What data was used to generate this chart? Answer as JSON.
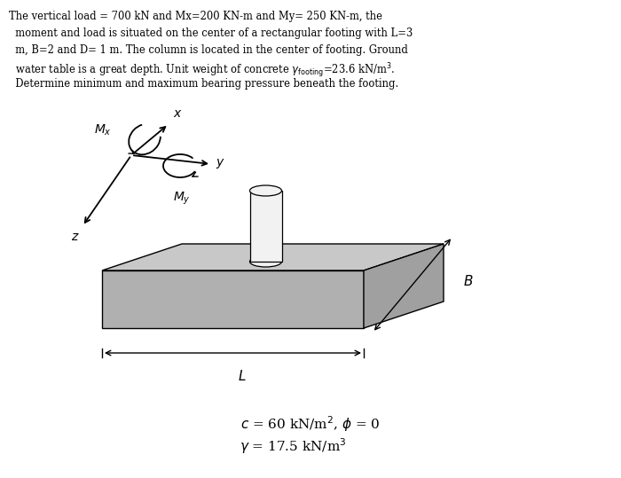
{
  "bg_color": "#ffffff",
  "text_color": "#000000",
  "footing_top_color": "#c8c8c8",
  "footing_front_color": "#b0b0b0",
  "footing_right_color": "#a0a0a0",
  "column_color": "#f2f2f2",
  "title_lines": [
    "The vertical load = 700 kN and Mx=200 KN-m and My= 250 KN-m, the",
    "  moment and load is situated on the center of a rectangular footing with L=3",
    "  m, B=2 and D= 1 m. The column is located in the center of footing. Ground",
    "  water table is a great depth. Unit weight of concrete $\\gamma_{\\mathrm{footing}}$=23.6 kN/m$^3$.",
    "  Determine minimum and maximum bearing pressure beneath the footing."
  ],
  "label_Mx": "$M_x$",
  "label_My": "$M_y$",
  "label_x": "$x$",
  "label_y": "$y$",
  "label_z": "$z$",
  "label_L": "$L$",
  "label_B": "$B$",
  "ann1": "$c$ = 60 kN/m$^2$, $\\phi$ = 0",
  "ann2": "$\\gamma$ = 17.5 kN/m$^3$"
}
